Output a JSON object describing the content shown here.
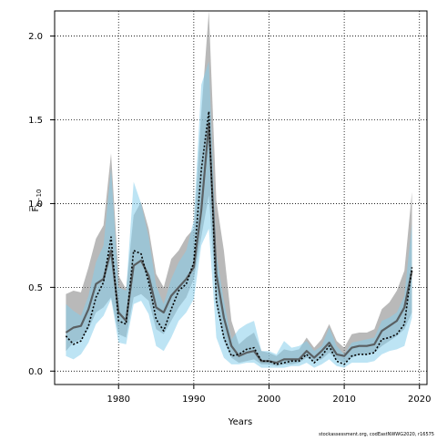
{
  "chart_data": {
    "type": "line",
    "title": "",
    "xlabel": "Years",
    "ylabel": "F̅₅₋₁₀",
    "ylabel_main": "F̅",
    "ylabel_sub": "5−10",
    "credit": "stockassessment.org, codEastNWWG2020, r16575",
    "xlim": [
      1971.5,
      2021
    ],
    "ylim": [
      -0.08,
      2.15
    ],
    "x_ticks": [
      1980,
      1990,
      2000,
      2010,
      2020
    ],
    "x_tick_labels": [
      "1980",
      "1990",
      "2000",
      "2010",
      "2020"
    ],
    "y_ticks": [
      0.0,
      0.5,
      1.0,
      1.5,
      2.0
    ],
    "y_tick_labels": [
      "0.0",
      "0.5",
      "1.0",
      "1.5",
      "2.0"
    ],
    "grid": true,
    "colors": {
      "gray_band": "#7f7f7f",
      "gray_line": "#4d4d4d",
      "blue_band": "#87ceeb",
      "blue_line": "#000000",
      "grid": "#000000"
    },
    "x": [
      1973,
      1974,
      1975,
      1976,
      1977,
      1978,
      1979,
      1980,
      1981,
      1982,
      1983,
      1984,
      1985,
      1986,
      1987,
      1988,
      1989,
      1990,
      1991,
      1992,
      1993,
      1994,
      1995,
      1996,
      1997,
      1998,
      1999,
      2000,
      2001,
      2002,
      2003,
      2004,
      2005,
      2006,
      2007,
      2008,
      2009,
      2010,
      2011,
      2012,
      2013,
      2014,
      2015,
      2016,
      2017,
      2018,
      2019
    ],
    "series": [
      {
        "style": "gray-solid-band",
        "values": [
          0.23,
          0.26,
          0.27,
          0.37,
          0.52,
          0.55,
          0.72,
          0.35,
          0.3,
          0.63,
          0.66,
          0.57,
          0.38,
          0.35,
          0.45,
          0.5,
          0.55,
          0.62,
          0.96,
          1.48,
          0.58,
          0.32,
          0.15,
          0.09,
          0.11,
          0.12,
          0.06,
          0.06,
          0.05,
          0.07,
          0.07,
          0.07,
          0.12,
          0.08,
          0.12,
          0.17,
          0.1,
          0.09,
          0.14,
          0.15,
          0.15,
          0.16,
          0.24,
          0.27,
          0.3,
          0.38,
          0.6
        ],
        "lower": [
          0.12,
          0.17,
          0.19,
          0.25,
          0.35,
          0.38,
          0.44,
          0.22,
          0.2,
          0.44,
          0.46,
          0.42,
          0.25,
          0.22,
          0.3,
          0.38,
          0.44,
          0.55,
          0.8,
          1.05,
          0.4,
          0.18,
          0.08,
          0.05,
          0.06,
          0.07,
          0.04,
          0.04,
          0.03,
          0.04,
          0.04,
          0.05,
          0.08,
          0.06,
          0.07,
          0.11,
          0.07,
          0.05,
          0.08,
          0.1,
          0.1,
          0.11,
          0.15,
          0.18,
          0.21,
          0.25,
          0.35
        ],
        "upper": [
          0.46,
          0.48,
          0.47,
          0.62,
          0.79,
          0.87,
          1.3,
          0.57,
          0.49,
          0.93,
          1.01,
          0.85,
          0.58,
          0.5,
          0.67,
          0.72,
          0.8,
          0.85,
          1.54,
          2.15,
          1.02,
          0.72,
          0.3,
          0.16,
          0.2,
          0.23,
          0.12,
          0.11,
          0.09,
          0.13,
          0.12,
          0.13,
          0.2,
          0.14,
          0.19,
          0.28,
          0.18,
          0.14,
          0.22,
          0.23,
          0.23,
          0.25,
          0.37,
          0.41,
          0.48,
          0.6,
          1.07
        ]
      },
      {
        "style": "blue-dotted-band",
        "values": [
          0.21,
          0.16,
          0.18,
          0.27,
          0.44,
          0.53,
          0.8,
          0.3,
          0.28,
          0.72,
          0.7,
          0.53,
          0.31,
          0.24,
          0.37,
          0.48,
          0.52,
          0.65,
          1.2,
          1.55,
          0.42,
          0.2,
          0.09,
          0.1,
          0.13,
          0.14,
          0.06,
          0.06,
          0.04,
          0.05,
          0.06,
          0.06,
          0.1,
          0.05,
          0.09,
          0.15,
          0.06,
          0.04,
          0.09,
          0.1,
          0.1,
          0.11,
          0.19,
          0.2,
          0.22,
          0.28,
          0.62
        ],
        "lower": [
          0.09,
          0.07,
          0.1,
          0.17,
          0.28,
          0.33,
          0.43,
          0.17,
          0.16,
          0.4,
          0.42,
          0.34,
          0.15,
          0.12,
          0.2,
          0.3,
          0.35,
          0.43,
          0.75,
          0.85,
          0.2,
          0.08,
          0.04,
          0.04,
          0.05,
          0.05,
          0.02,
          0.02,
          0.02,
          0.02,
          0.03,
          0.03,
          0.05,
          0.02,
          0.04,
          0.07,
          0.03,
          0.02,
          0.05,
          0.05,
          0.05,
          0.06,
          0.1,
          0.12,
          0.13,
          0.15,
          0.32
        ],
        "upper": [
          0.4,
          0.36,
          0.33,
          0.45,
          0.65,
          0.75,
          1.21,
          0.5,
          0.48,
          1.13,
          1.0,
          0.8,
          0.51,
          0.4,
          0.55,
          0.65,
          0.72,
          0.9,
          1.71,
          1.85,
          0.7,
          0.42,
          0.19,
          0.25,
          0.28,
          0.3,
          0.12,
          0.12,
          0.1,
          0.18,
          0.14,
          0.15,
          0.18,
          0.12,
          0.15,
          0.26,
          0.15,
          0.1,
          0.17,
          0.18,
          0.19,
          0.2,
          0.3,
          0.32,
          0.35,
          0.45,
          0.88
        ]
      }
    ]
  }
}
